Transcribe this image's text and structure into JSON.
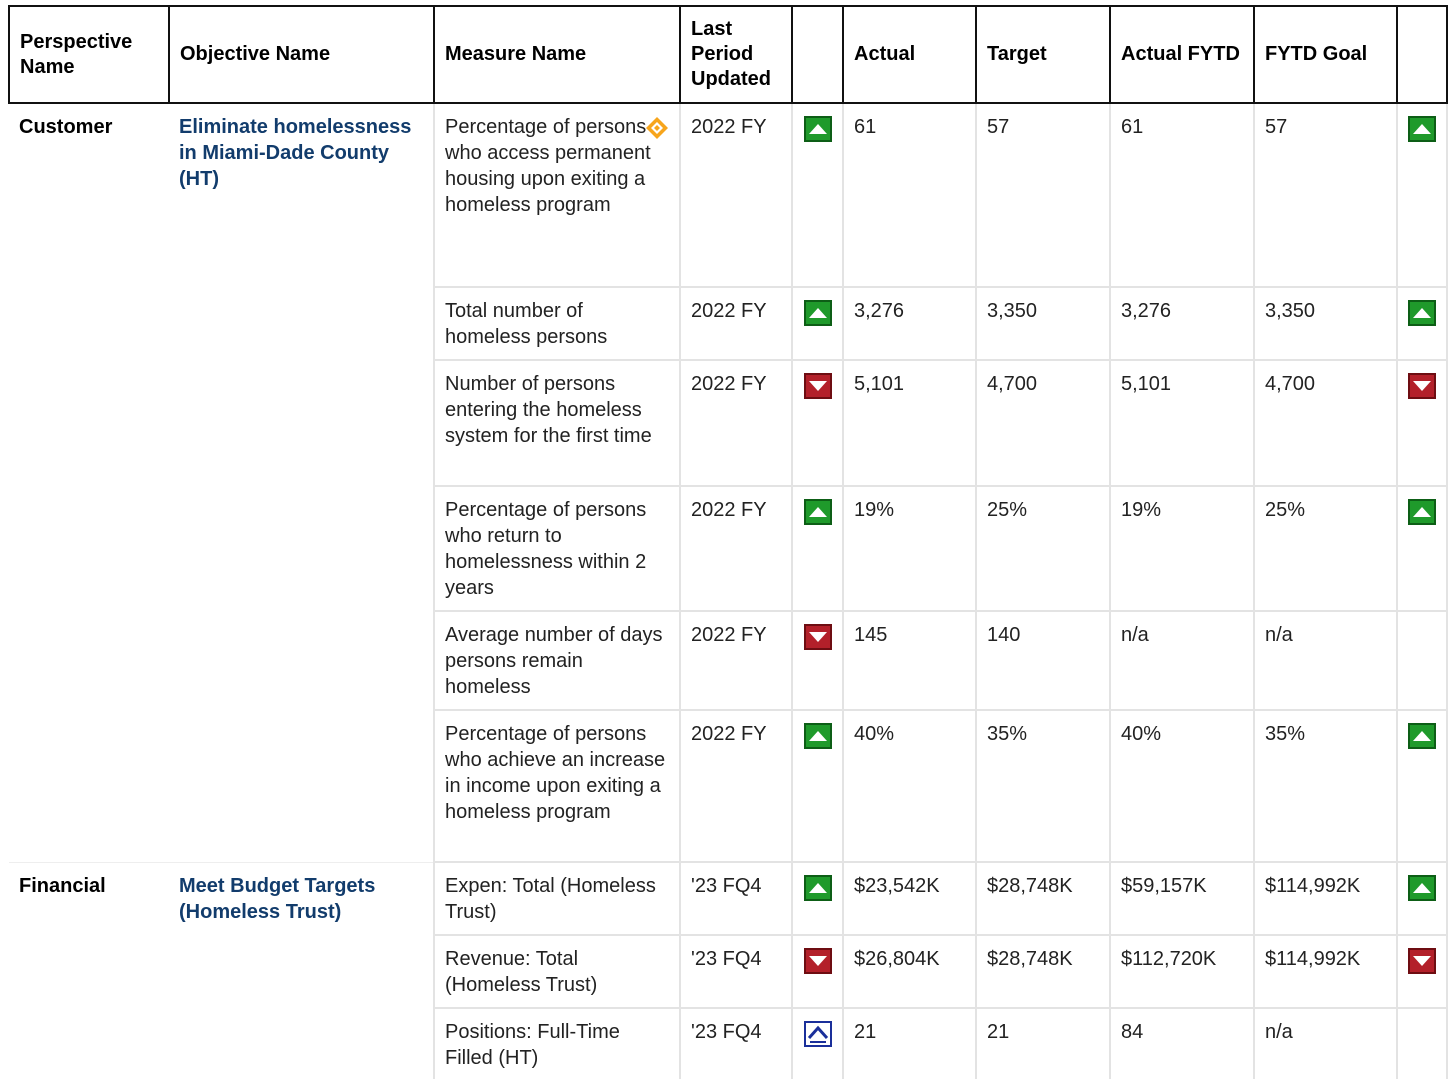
{
  "header": [
    "Perspective Name",
    "Objective Name",
    "Measure Name",
    "Last Period Updated",
    "Actual",
    "Target",
    "Actual FYTD",
    "FYTD Goal"
  ],
  "groups": [
    {
      "perspective": "Customer",
      "objective": "Eliminate homelessness in Miami-Dade County (HT)",
      "rows": [
        {
          "measure": "Percentage of persons who access permanent housing upon exiting a homeless program",
          "period": "2022 FY",
          "actual": "61",
          "target": "57",
          "actual_fytd": "61",
          "fytd_goal": "57"
        },
        {
          "measure": "Total number of homeless persons",
          "period": "2022 FY",
          "actual": "3,276",
          "target": "3,350",
          "actual_fytd": "3,276",
          "fytd_goal": "3,350"
        },
        {
          "measure": "Number of persons entering the homeless system for the first time",
          "period": "2022 FY",
          "actual": "5,101",
          "target": "4,700",
          "actual_fytd": "5,101",
          "fytd_goal": "4,700"
        },
        {
          "measure": "Percentage of persons who return to homelessness within 2 years",
          "period": "2022 FY",
          "actual": "19%",
          "target": "25%",
          "actual_fytd": "19%",
          "fytd_goal": "25%"
        },
        {
          "measure": "Average number of days persons remain homeless",
          "period": "2022 FY",
          "actual": "145",
          "target": "140",
          "actual_fytd": "n/a",
          "fytd_goal": "n/a"
        },
        {
          "measure": "Percentage of persons who achieve an increase in income upon exiting a homeless program",
          "period": "2022 FY",
          "actual": "40%",
          "target": "35%",
          "actual_fytd": "40%",
          "fytd_goal": "35%"
        }
      ]
    },
    {
      "perspective": "Financial",
      "objective": "Meet Budget Targets (Homeless Trust)",
      "rows": [
        {
          "measure": "Expen: Total (Homeless Trust)",
          "period": "'23 FQ4",
          "actual": "$23,542K",
          "target": "$28,748K",
          "actual_fytd": "$59,157K",
          "fytd_goal": "$114,992K"
        },
        {
          "measure": "Revenue: Total (Homeless Trust)",
          "period": "'23 FQ4",
          "actual": "$26,804K",
          "target": "$28,748K",
          "actual_fytd": "$112,720K",
          "fytd_goal": "$114,992K"
        },
        {
          "measure": "Positions: Full-Time Filled (HT)",
          "period": "'23 FQ4",
          "actual": "21",
          "target": "21",
          "actual_fytd": "84",
          "fytd_goal": "n/a"
        }
      ]
    }
  ]
}
